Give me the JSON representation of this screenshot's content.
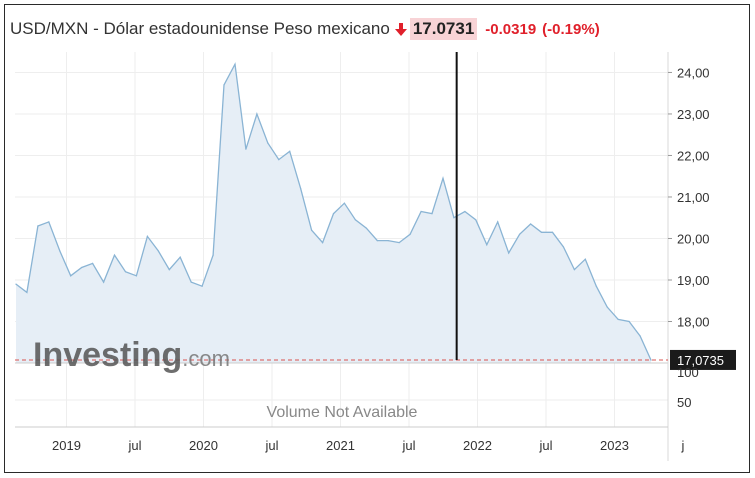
{
  "header": {
    "title": "USD/MXN - Dólar estadounidense Peso mexicano",
    "price": "17.0731",
    "change": "-0.0319",
    "change_pct": "(-0.19%)",
    "arrow_icon": "down-arrow-icon",
    "negative_color": "#e0202b",
    "price_bg": "#f8d3d6"
  },
  "chart_data": {
    "type": "area",
    "title": "USD/MXN - Dólar estadounidense Peso mexicano",
    "x": [
      "2018-08",
      "2018-09",
      "2018-10",
      "2018-11",
      "2018-12",
      "2019-01",
      "2019-02",
      "2019-03",
      "2019-04",
      "2019-05",
      "2019-06",
      "2019-07",
      "2019-08",
      "2019-09",
      "2019-10",
      "2019-11",
      "2019-12",
      "2020-01",
      "2020-02",
      "2020-03",
      "2020-04",
      "2020-05",
      "2020-06",
      "2020-07",
      "2020-08",
      "2020-09",
      "2020-10",
      "2020-11",
      "2020-12",
      "2021-01",
      "2021-02",
      "2021-03",
      "2021-04",
      "2021-05",
      "2021-06",
      "2021-07",
      "2021-08",
      "2021-09",
      "2021-10",
      "2021-11",
      "2021-12",
      "2022-01",
      "2022-02",
      "2022-03",
      "2022-04",
      "2022-05",
      "2022-06",
      "2022-07",
      "2022-08",
      "2022-09",
      "2022-10",
      "2022-11",
      "2022-12",
      "2023-01",
      "2023-02",
      "2023-03",
      "2023-04",
      "2023-05",
      "2023-06"
    ],
    "series": [
      {
        "values": [
          18.9,
          18.7,
          20.3,
          20.4,
          19.7,
          19.1,
          19.3,
          19.4,
          18.95,
          19.6,
          19.2,
          19.1,
          20.05,
          19.7,
          19.25,
          19.55,
          18.95,
          18.85,
          19.6,
          23.7,
          24.2,
          22.15,
          23.0,
          22.3,
          21.9,
          22.1,
          21.2,
          20.2,
          19.9,
          20.6,
          20.85,
          20.45,
          20.25,
          19.95,
          19.95,
          19.9,
          20.1,
          20.65,
          20.6,
          21.45,
          20.5,
          20.65,
          20.45,
          19.85,
          20.4,
          19.65,
          20.1,
          20.35,
          20.15,
          20.15,
          19.8,
          19.25,
          19.5,
          18.85,
          18.35,
          18.05,
          18.0,
          17.65,
          17.07
        ]
      }
    ],
    "ylim": [
      17.0,
      24.3
    ],
    "y_ticks": [
      "24,00",
      "23,00",
      "22,00",
      "21,00",
      "20,00",
      "19,00",
      "18,00"
    ],
    "y_tick_values": [
      24,
      23,
      22,
      21,
      20,
      19,
      18
    ],
    "current_value_label": "17,0735",
    "current_value": 17.0735,
    "x_ticks": [
      "2019",
      "jul",
      "2020",
      "jul",
      "2021",
      "jul",
      "2022",
      "jul",
      "2023",
      "j"
    ],
    "x_tick_dates": [
      "2019-01",
      "2019-07",
      "2020-01",
      "2020-07",
      "2021-01",
      "2021-07",
      "2022-01",
      "2022-07",
      "2023-01",
      "2023-07"
    ],
    "crosshair_date": "2021-11",
    "volume_ticks": [
      "100",
      "50"
    ],
    "volume_note": "Volume Not Available",
    "watermark": "Investing.com",
    "line_color": "#8ab4d4",
    "fill_color": "#e6eef6",
    "current_line_color": "#d9534f",
    "grid": true
  }
}
